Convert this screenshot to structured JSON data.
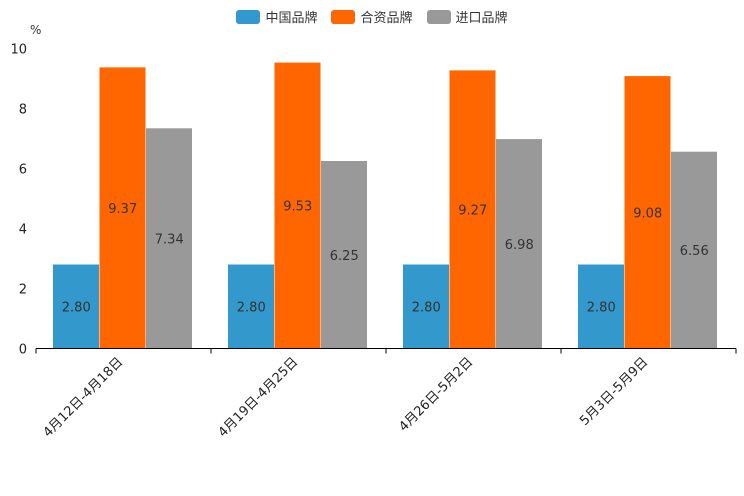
{
  "chart_data": {
    "type": "bar",
    "title": "",
    "ylabel": "%",
    "xlabel": "",
    "ylim": [
      0,
      10
    ],
    "yticks": [
      0,
      2,
      4,
      6,
      8,
      10
    ],
    "categories": [
      "4月12日-4月18日",
      "4月19日-4月25日",
      "4月26日-5月2日",
      "5月3日-5月9日"
    ],
    "series": [
      {
        "name": "中国品牌",
        "color": "#3399cc",
        "values": [
          2.8,
          2.8,
          2.8,
          2.8
        ]
      },
      {
        "name": "合资品牌",
        "color": "#ff6600",
        "values": [
          9.37,
          9.53,
          9.27,
          9.08
        ]
      },
      {
        "name": "进口品牌",
        "color": "#999999",
        "values": [
          7.34,
          6.25,
          6.98,
          6.56
        ]
      }
    ],
    "legend_position": "top-center"
  }
}
